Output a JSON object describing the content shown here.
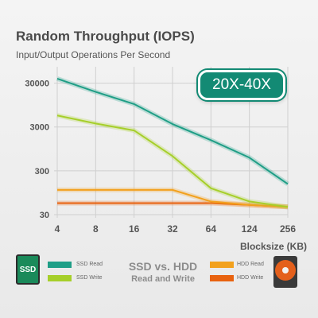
{
  "chart_data": {
    "type": "line",
    "title": "Random Throughput (IOPS)",
    "subtitle": "Input/Output Operations Per Second",
    "xlabel": "Blocksize (KB)",
    "ylabel": "",
    "x_categories": [
      "4",
      "8",
      "16",
      "32",
      "64",
      "124",
      "256"
    ],
    "y_scale": "log",
    "y_ticks": [
      "30000",
      "3000",
      "300",
      "30"
    ],
    "y_tick_values": [
      30000,
      3000,
      300,
      30
    ],
    "ylim": [
      30,
      30000
    ],
    "grid": true,
    "annotation": "20X-40X",
    "caption_line1": "SSD vs. HDD",
    "caption_line2": "Read and Write",
    "legend_position": "bottom",
    "series": [
      {
        "name": "SSD Read",
        "color": "#1f9e86",
        "values": [
          38000,
          19000,
          10000,
          3500,
          1500,
          600,
          150
        ]
      },
      {
        "name": "SSD Write",
        "color": "#a6cf2a",
        "values": [
          5500,
          3600,
          2500,
          650,
          120,
          60,
          45
        ]
      },
      {
        "name": "HDD Read",
        "color": "#f2a11e",
        "values": [
          110,
          110,
          110,
          110,
          60,
          50,
          45
        ]
      },
      {
        "name": "HDD Write",
        "color": "#e8620f",
        "values": [
          55,
          55,
          55,
          55,
          55,
          50,
          45
        ]
      }
    ]
  },
  "ssd_icon_text": "SSD"
}
